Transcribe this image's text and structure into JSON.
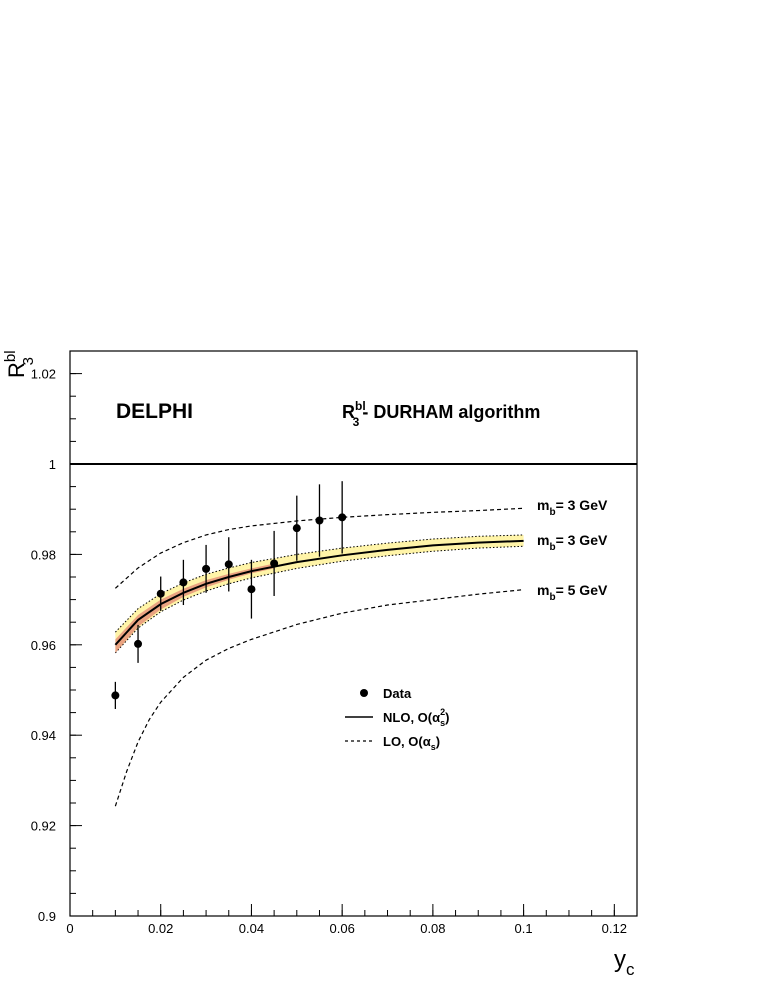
{
  "chart_data": {
    "type": "line",
    "experiment": "DELPHI",
    "title": "- DURHAM algorithm",
    "title_symbol": {
      "base": "R",
      "sup": "bl",
      "sub": "3"
    },
    "ylabel": {
      "base": "R",
      "sup": "bl",
      "sub": "3"
    },
    "xlabel": {
      "base": "y",
      "sub": "c"
    },
    "xlim": [
      0,
      0.125
    ],
    "ylim": [
      0.9,
      1.025
    ],
    "x_ticks": [
      0,
      0.02,
      0.04,
      0.06,
      0.08,
      0.1,
      0.12
    ],
    "x_tick_labels": [
      "0",
      "0.02",
      "0.04",
      "0.06",
      "0.08",
      "0.1",
      "0.12"
    ],
    "y_ticks": [
      0.9,
      0.92,
      0.94,
      0.96,
      0.98,
      1.0,
      1.02
    ],
    "y_tick_labels": [
      "0.9",
      "0.92",
      "0.94",
      "0.96",
      "0.98",
      "1",
      "1.02"
    ],
    "reference_line": 1.0,
    "grid": false,
    "legend_position": "center",
    "legend": [
      {
        "marker": "dot",
        "label": "Data"
      },
      {
        "marker": "solid",
        "label_base": "NLO, O(",
        "label_sym": "α",
        "label_sub": "s",
        "label_sup": "2",
        "label_end": ")"
      },
      {
        "marker": "dashed",
        "label_base": "LO, O(",
        "label_sym": "α",
        "label_sub": "s",
        "label_end": ")"
      }
    ],
    "curve_labels": [
      {
        "curve": "lo_3",
        "base": "m",
        "sub": "b",
        "text": "= 3 GeV"
      },
      {
        "curve": "nlo",
        "base": "m",
        "sub": "b",
        "text": "= 3 GeV"
      },
      {
        "curve": "lo_5",
        "base": "m",
        "sub": "b",
        "text": "= 5 GeV"
      }
    ],
    "data_points": [
      {
        "x": 0.01,
        "y": 0.9488,
        "err": 0.003
      },
      {
        "x": 0.015,
        "y": 0.9602,
        "err": 0.0042
      },
      {
        "x": 0.02,
        "y": 0.9713,
        "err": 0.0038
      },
      {
        "x": 0.025,
        "y": 0.9738,
        "err": 0.005
      },
      {
        "x": 0.03,
        "y": 0.9768,
        "err": 0.0053
      },
      {
        "x": 0.035,
        "y": 0.9778,
        "err": 0.006
      },
      {
        "x": 0.04,
        "y": 0.9723,
        "err": 0.0065
      },
      {
        "x": 0.045,
        "y": 0.978,
        "err": 0.0072
      },
      {
        "x": 0.05,
        "y": 0.9858,
        "err": 0.0072
      },
      {
        "x": 0.055,
        "y": 0.9875,
        "err": 0.008
      },
      {
        "x": 0.06,
        "y": 0.9882,
        "err": 0.008
      }
    ],
    "series": [
      {
        "id": "lo_3",
        "style": "dashed",
        "x": [
          0.01,
          0.015,
          0.02,
          0.025,
          0.03,
          0.035,
          0.04,
          0.05,
          0.06,
          0.07,
          0.08,
          0.09,
          0.1
        ],
        "y": [
          0.9725,
          0.977,
          0.9803,
          0.9826,
          0.9843,
          0.9855,
          0.9863,
          0.9874,
          0.9882,
          0.9888,
          0.9893,
          0.9897,
          0.9902
        ]
      },
      {
        "id": "nlo",
        "style": "solid",
        "x": [
          0.01,
          0.015,
          0.02,
          0.025,
          0.03,
          0.035,
          0.04,
          0.05,
          0.06,
          0.07,
          0.08,
          0.09,
          0.1
        ],
        "y": [
          0.96,
          0.9655,
          0.969,
          0.9715,
          0.9735,
          0.975,
          0.9763,
          0.9783,
          0.9798,
          0.981,
          0.982,
          0.9826,
          0.983
        ]
      },
      {
        "id": "lo_5",
        "style": "dashed",
        "x": [
          0.01,
          0.0125,
          0.015,
          0.0175,
          0.02,
          0.025,
          0.03,
          0.035,
          0.04,
          0.05,
          0.06,
          0.07,
          0.08,
          0.09,
          0.1
        ],
        "y": [
          0.9243,
          0.932,
          0.9385,
          0.9435,
          0.9473,
          0.9528,
          0.9566,
          0.9592,
          0.9612,
          0.9645,
          0.967,
          0.9688,
          0.97,
          0.9712,
          0.9722
        ]
      }
    ],
    "bands": [
      {
        "id": "yellow_band",
        "x": [
          0.01,
          0.015,
          0.02,
          0.025,
          0.03,
          0.035,
          0.04,
          0.05,
          0.06,
          0.07,
          0.08,
          0.09,
          0.1
        ],
        "lower": [
          0.9582,
          0.9637,
          0.9673,
          0.9699,
          0.9719,
          0.9735,
          0.9748,
          0.9769,
          0.9785,
          0.9797,
          0.9807,
          0.9814,
          0.9818
        ],
        "upper": [
          0.9628,
          0.968,
          0.9713,
          0.9737,
          0.9756,
          0.977,
          0.9782,
          0.98,
          0.9814,
          0.9825,
          0.9834,
          0.984,
          0.9843
        ],
        "color": "#fff4a8"
      },
      {
        "id": "red_band",
        "x": [
          0.01,
          0.015,
          0.02,
          0.025,
          0.03,
          0.035,
          0.04,
          0.045
        ],
        "lower": [
          0.9582,
          0.964,
          0.9678,
          0.9706,
          0.9727,
          0.9744,
          0.9758,
          0.9769
        ],
        "upper": [
          0.9612,
          0.9666,
          0.97,
          0.9724,
          0.9743,
          0.9757,
          0.9769,
          0.978
        ],
        "color": "#d96060"
      }
    ]
  }
}
